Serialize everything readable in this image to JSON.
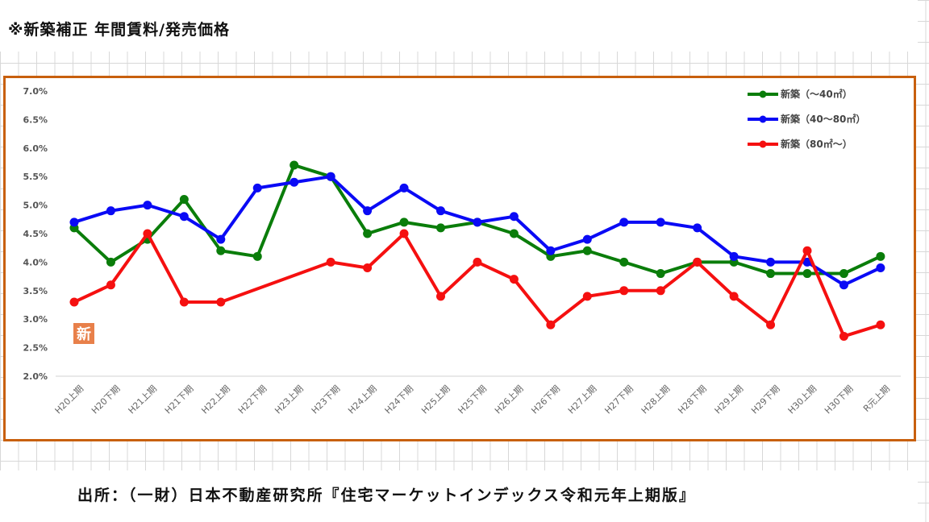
{
  "header": {
    "title": "※新築補正 年間賃料/発売価格"
  },
  "footer": {
    "source": "出所：（一財）日本不動産研究所『住宅マーケットインデックス令和元年上期版』"
  },
  "badge": {
    "label": "新",
    "color": "#e8804a"
  },
  "chart_data": {
    "type": "line",
    "title": "",
    "xlabel": "",
    "ylabel": "",
    "ylim": [
      2.0,
      7.0
    ],
    "yticks": [
      "7.0%",
      "6.5%",
      "6.0%",
      "5.5%",
      "5.0%",
      "4.5%",
      "4.0%",
      "3.5%",
      "3.0%",
      "2.5%",
      "2.0%"
    ],
    "ytick_values": [
      7.0,
      6.5,
      6.0,
      5.5,
      5.0,
      4.5,
      4.0,
      3.5,
      3.0,
      2.5,
      2.0
    ],
    "legend_position": "top-right",
    "categories": [
      "H20上期",
      "H20下期",
      "H21上期",
      "H21下期",
      "H22上期",
      "H22下期",
      "H23上期",
      "H23下期",
      "H24上期",
      "H24下期",
      "H25上期",
      "H25下期",
      "H26上期",
      "H26下期",
      "H27上期",
      "H27下期",
      "H28上期",
      "H28下期",
      "H29上期",
      "H29下期",
      "H30上期",
      "H30下期",
      "R元上期"
    ],
    "series": [
      {
        "name": "新築（～40㎡）",
        "color": "#0a7d0a",
        "values": [
          4.6,
          4.0,
          4.4,
          5.1,
          4.2,
          4.1,
          5.7,
          5.5,
          4.5,
          4.7,
          4.6,
          4.7,
          4.5,
          4.1,
          4.2,
          4.0,
          3.8,
          4.0,
          4.0,
          3.8,
          3.8,
          3.8,
          4.1
        ]
      },
      {
        "name": "新築（40～80㎡）",
        "color": "#0a0af5",
        "values": [
          4.7,
          4.9,
          5.0,
          4.8,
          4.4,
          5.3,
          5.4,
          5.5,
          4.9,
          5.3,
          4.9,
          4.7,
          4.8,
          4.2,
          4.4,
          4.7,
          4.7,
          4.6,
          4.1,
          4.0,
          4.0,
          3.6,
          3.9
        ]
      },
      {
        "name": "新築（80㎡～）",
        "color": "#f51010",
        "values": [
          3.3,
          3.6,
          4.5,
          3.3,
          3.3,
          null,
          null,
          4.0,
          3.9,
          4.5,
          3.4,
          4.0,
          3.7,
          2.9,
          3.4,
          3.5,
          3.5,
          4.0,
          3.4,
          2.9,
          4.2,
          2.7,
          2.9
        ]
      }
    ]
  }
}
